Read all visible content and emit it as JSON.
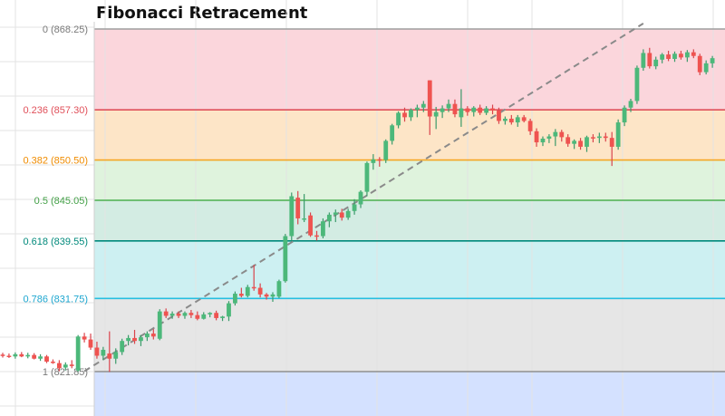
{
  "chart_data": {
    "type": "candlestick",
    "title": "Fibonacci Retracement",
    "ylim": [
      817.0,
      869.5
    ],
    "grid": true,
    "fib_levels": [
      {
        "ratio": "0",
        "price": "868.25",
        "value": 868.25,
        "line_color": "#9e9e9e",
        "zone_color": "#fbd6dc",
        "label_color": "#7a7a7a"
      },
      {
        "ratio": "0.236",
        "price": "857.30",
        "value": 857.3,
        "line_color": "#e0505a",
        "zone_color": "#fde5c7",
        "label_color": "#e0505a"
      },
      {
        "ratio": "0.382",
        "price": "850.50",
        "value": 850.5,
        "line_color": "#f5a623",
        "zone_color": "#dff3dd",
        "label_color": "#f08c00"
      },
      {
        "ratio": "0.5",
        "price": "845.05",
        "value": 845.05,
        "line_color": "#4caf50",
        "zone_color": "#d3ece3",
        "label_color": "#43a047"
      },
      {
        "ratio": "0.618",
        "price": "839.55",
        "value": 839.55,
        "line_color": "#00897b",
        "zone_color": "#cdf0f2",
        "label_color": "#00897b"
      },
      {
        "ratio": "0.786",
        "price": "831.75",
        "value": 831.75,
        "line_color": "#26bfe0",
        "zone_color": "#e6e6e6",
        "label_color": "#1ea7d0"
      },
      {
        "ratio": "1",
        "price": "821.85",
        "value": 821.85,
        "line_color": "#8f8f8f",
        "zone_color": "#d4e1ff",
        "label_color": "#7a7a7a"
      }
    ],
    "trend_line": {
      "from": {
        "bar": 13,
        "price": 821.9
      },
      "to": {
        "bar": 102,
        "price": 869.0
      },
      "style": "dashed",
      "color": "#8a8a8a"
    },
    "candles": [
      [
        824.15,
        824.4,
        823.75,
        824.0
      ],
      [
        824.0,
        824.3,
        823.7,
        823.9
      ],
      [
        823.9,
        824.45,
        823.6,
        824.2
      ],
      [
        824.2,
        824.5,
        823.8,
        823.9
      ],
      [
        823.9,
        824.4,
        823.65,
        824.1
      ],
      [
        824.1,
        824.35,
        823.5,
        823.6
      ],
      [
        823.6,
        824.2,
        823.3,
        823.9
      ],
      [
        823.9,
        824.1,
        823.0,
        823.2
      ],
      [
        823.2,
        823.5,
        822.9,
        823.1
      ],
      [
        823.0,
        823.4,
        821.9,
        822.3
      ],
      [
        822.4,
        823.1,
        822.0,
        822.8
      ],
      [
        822.8,
        823.4,
        822.3,
        822.6
      ],
      [
        822.0,
        826.8,
        821.8,
        826.6
      ],
      [
        826.6,
        827.1,
        825.8,
        826.2
      ],
      [
        826.2,
        827.0,
        824.8,
        825.1
      ],
      [
        825.1,
        825.9,
        823.6,
        824.0
      ],
      [
        824.0,
        825.2,
        823.4,
        824.8
      ],
      [
        824.3,
        827.3,
        821.8,
        823.6
      ],
      [
        823.6,
        825.0,
        822.9,
        824.5
      ],
      [
        824.5,
        826.3,
        824.1,
        826.0
      ],
      [
        826.0,
        826.8,
        825.4,
        826.4
      ],
      [
        826.4,
        827.5,
        825.6,
        826.0
      ],
      [
        826.0,
        826.8,
        825.3,
        826.5
      ],
      [
        826.5,
        827.3,
        826.0,
        827.0
      ],
      [
        827.0,
        827.6,
        826.2,
        826.6
      ],
      [
        826.3,
        830.3,
        826.1,
        830.0
      ],
      [
        830.0,
        830.4,
        829.1,
        829.4
      ],
      [
        829.4,
        830.0,
        829.0,
        829.7
      ],
      [
        829.7,
        830.0,
        829.1,
        829.4
      ],
      [
        829.4,
        830.0,
        829.0,
        829.8
      ],
      [
        829.8,
        830.2,
        829.1,
        829.5
      ],
      [
        829.5,
        830.0,
        828.8,
        829.0
      ],
      [
        829.0,
        829.9,
        828.9,
        829.6
      ],
      [
        829.6,
        829.9,
        829.2,
        829.8
      ],
      [
        829.8,
        830.1,
        828.8,
        829.1
      ],
      [
        829.1,
        829.4,
        828.7,
        829.3
      ],
      [
        829.3,
        831.4,
        828.7,
        831.1
      ],
      [
        831.1,
        832.7,
        830.8,
        832.4
      ],
      [
        832.4,
        833.2,
        831.9,
        832.1
      ],
      [
        832.1,
        833.6,
        831.9,
        833.3
      ],
      [
        833.3,
        836.3,
        832.8,
        833.2
      ],
      [
        833.2,
        833.8,
        831.9,
        832.3
      ],
      [
        832.3,
        832.5,
        831.6,
        832.0
      ],
      [
        832.0,
        832.6,
        831.3,
        832.3
      ],
      [
        832.0,
        834.3,
        831.8,
        834.1
      ],
      [
        834.1,
        840.5,
        833.9,
        840.2
      ],
      [
        840.2,
        846.1,
        839.6,
        845.6
      ],
      [
        845.4,
        846.3,
        841.8,
        842.6
      ],
      [
        842.6,
        845.9,
        842.1,
        842.6
      ],
      [
        843.0,
        843.4,
        840.1,
        840.3
      ],
      [
        840.3,
        840.9,
        839.6,
        840.2
      ],
      [
        840.2,
        842.6,
        839.9,
        842.2
      ],
      [
        842.2,
        843.4,
        841.4,
        843.1
      ],
      [
        843.1,
        843.8,
        842.1,
        843.4
      ],
      [
        843.4,
        843.9,
        842.3,
        842.7
      ],
      [
        842.7,
        843.9,
        842.4,
        843.6
      ],
      [
        843.6,
        845.2,
        843.1,
        844.5
      ],
      [
        844.5,
        846.4,
        844.0,
        846.2
      ],
      [
        846.2,
        850.3,
        845.6,
        850.1
      ],
      [
        850.1,
        851.3,
        849.2,
        850.6
      ],
      [
        850.6,
        850.9,
        849.6,
        850.5
      ],
      [
        850.5,
        853.3,
        850.1,
        853.1
      ],
      [
        853.1,
        855.4,
        852.6,
        855.2
      ],
      [
        855.2,
        857.1,
        854.8,
        856.9
      ],
      [
        856.9,
        857.6,
        855.7,
        856.3
      ],
      [
        856.3,
        857.5,
        855.8,
        857.3
      ],
      [
        857.3,
        858.0,
        856.3,
        857.6
      ],
      [
        857.6,
        858.5,
        857.0,
        858.1
      ],
      [
        861.3,
        861.3,
        853.9,
        856.4
      ],
      [
        856.4,
        857.7,
        854.7,
        857.0
      ],
      [
        857.0,
        857.9,
        856.2,
        857.5
      ],
      [
        857.5,
        858.7,
        857.0,
        858.1
      ],
      [
        858.1,
        858.7,
        856.3,
        856.7
      ],
      [
        856.3,
        860.1,
        855.0,
        857.5
      ],
      [
        857.5,
        857.8,
        856.5,
        857.0
      ],
      [
        857.0,
        857.8,
        856.4,
        857.6
      ],
      [
        857.6,
        858.0,
        856.6,
        856.9
      ],
      [
        856.9,
        857.8,
        856.6,
        857.5
      ],
      [
        857.5,
        858.0,
        856.7,
        857.2
      ],
      [
        857.2,
        857.6,
        855.4,
        855.8
      ],
      [
        855.8,
        856.4,
        855.3,
        856.1
      ],
      [
        856.1,
        856.6,
        855.3,
        855.6
      ],
      [
        855.6,
        856.6,
        855.0,
        856.3
      ],
      [
        856.3,
        856.6,
        855.6,
        855.8
      ],
      [
        855.8,
        856.1,
        853.9,
        854.4
      ],
      [
        854.4,
        854.8,
        852.3,
        852.9
      ],
      [
        852.9,
        853.7,
        852.4,
        853.4
      ],
      [
        853.4,
        854.0,
        852.8,
        853.7
      ],
      [
        853.7,
        854.7,
        852.4,
        854.3
      ],
      [
        854.3,
        854.6,
        853.0,
        853.6
      ],
      [
        853.6,
        854.0,
        852.3,
        852.7
      ],
      [
        852.7,
        853.3,
        852.0,
        853.1
      ],
      [
        853.1,
        853.5,
        851.9,
        852.3
      ],
      [
        852.3,
        853.8,
        851.6,
        853.6
      ],
      [
        853.6,
        854.0,
        852.9,
        853.5
      ],
      [
        853.5,
        854.2,
        852.8,
        853.7
      ],
      [
        853.7,
        854.2,
        853.0,
        853.5
      ],
      [
        853.5,
        854.3,
        849.7,
        852.3
      ],
      [
        852.3,
        856.0,
        851.9,
        855.6
      ],
      [
        855.6,
        857.9,
        855.1,
        857.6
      ],
      [
        857.6,
        858.8,
        857.0,
        858.5
      ],
      [
        858.5,
        863.3,
        858.1,
        863.0
      ],
      [
        863.0,
        865.5,
        862.6,
        865.0
      ],
      [
        865.0,
        865.7,
        862.9,
        863.2
      ],
      [
        863.2,
        864.5,
        862.8,
        864.1
      ],
      [
        864.1,
        865.0,
        863.6,
        864.8
      ],
      [
        864.8,
        865.3,
        863.9,
        864.2
      ],
      [
        864.2,
        865.2,
        863.8,
        864.9
      ],
      [
        864.9,
        865.3,
        864.1,
        864.4
      ],
      [
        864.4,
        865.4,
        863.8,
        865.1
      ],
      [
        865.1,
        865.5,
        864.3,
        864.6
      ],
      [
        864.6,
        864.9,
        862.0,
        862.4
      ],
      [
        862.4,
        864.0,
        862.1,
        863.6
      ],
      [
        863.6,
        864.6,
        863.0,
        864.3
      ]
    ],
    "colors": {
      "up": "#26a69a",
      "up_fill": "#4cb87a",
      "down": "#ef5350",
      "wick_up": "#3a9a6a",
      "wick_down": "#d9434c",
      "grid": "#e3e3e3"
    }
  }
}
